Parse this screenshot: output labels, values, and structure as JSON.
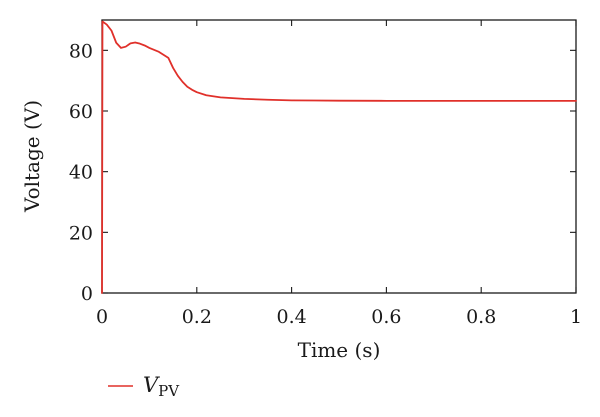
{
  "chart_data": {
    "type": "line",
    "title": "",
    "xlabel": "Time (s)",
    "ylabel": "Voltage (V)",
    "xlim": [
      0,
      1
    ],
    "ylim": [
      0,
      90
    ],
    "x_ticks": [
      0,
      0.2,
      0.4,
      0.6,
      0.8,
      1
    ],
    "x_tick_labels": [
      "0",
      "0.2",
      "0.4",
      "0.6",
      "0.8",
      "1"
    ],
    "y_ticks": [
      0,
      20,
      40,
      60,
      80
    ],
    "y_tick_labels": [
      "0",
      "20",
      "40",
      "60",
      "80"
    ],
    "grid": false,
    "legend_position": "bottom-left",
    "colors": {
      "series": "#e0302a",
      "axis": "#1a1a1a"
    },
    "series": [
      {
        "name_main": "V",
        "name_sub": "PV",
        "x": [
          0,
          0.001,
          0.01,
          0.02,
          0.03,
          0.04,
          0.05,
          0.06,
          0.07,
          0.08,
          0.09,
          0.1,
          0.12,
          0.14,
          0.15,
          0.16,
          0.17,
          0.18,
          0.19,
          0.2,
          0.22,
          0.25,
          0.3,
          0.35,
          0.4,
          0.45,
          0.5,
          0.6,
          0.7,
          0.8,
          0.9,
          1.0
        ],
        "y": [
          0,
          89.5,
          88.5,
          86.5,
          82.5,
          80.8,
          81.2,
          82.3,
          82.6,
          82.2,
          81.6,
          80.8,
          79.5,
          77.5,
          74.2,
          71.6,
          69.6,
          68.0,
          67.0,
          66.2,
          65.2,
          64.5,
          64.0,
          63.7,
          63.5,
          63.45,
          63.4,
          63.35,
          63.35,
          63.35,
          63.35,
          63.35
        ]
      }
    ]
  }
}
